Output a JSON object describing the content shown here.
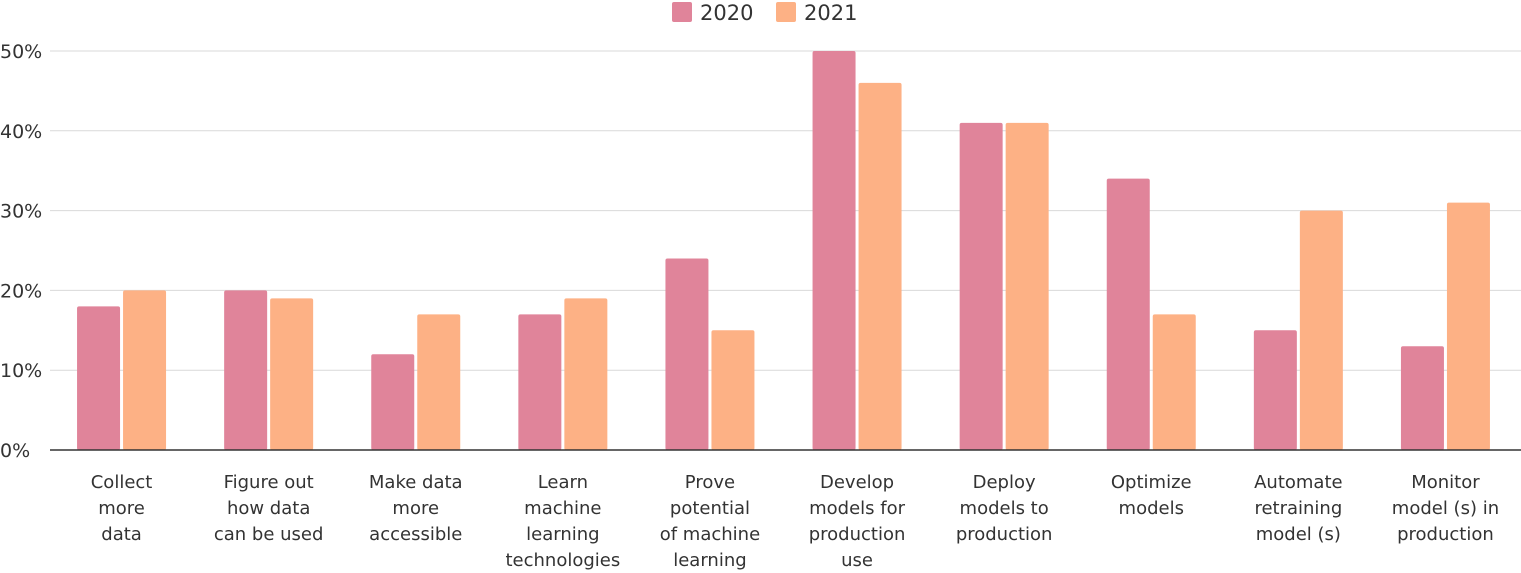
{
  "chart_data": {
    "type": "bar",
    "title": "",
    "xlabel": "",
    "ylabel": "",
    "ylim": [
      0,
      50
    ],
    "yticks": [
      "0%",
      "10%",
      "20%",
      "30%",
      "40%",
      "50%"
    ],
    "ytick_values": [
      0,
      10,
      20,
      30,
      40,
      50
    ],
    "grid": true,
    "legend_position": "top-center",
    "categories": [
      [
        "Collect",
        "more",
        "data"
      ],
      [
        "Figure out",
        "how data",
        "can be used"
      ],
      [
        "Make data",
        "more",
        "accessible"
      ],
      [
        "Learn",
        "machine",
        "learning",
        "technologies"
      ],
      [
        "Prove",
        "potential",
        "of machine",
        "learning"
      ],
      [
        "Develop",
        "models for",
        "production",
        "use"
      ],
      [
        "Deploy",
        "models to",
        "production"
      ],
      [
        "Optimize",
        "models"
      ],
      [
        "Automate",
        "retraining",
        "model (s)"
      ],
      [
        "Monitor",
        "model (s) in",
        "production"
      ]
    ],
    "series": [
      {
        "name": "2020",
        "color": "#e0849a",
        "values": [
          18,
          20,
          12,
          17,
          24,
          50,
          41,
          34,
          15,
          13
        ]
      },
      {
        "name": "2021",
        "color": "#fdb185",
        "values": [
          20,
          19,
          17,
          19,
          15,
          46,
          41,
          17,
          30,
          31
        ]
      }
    ]
  }
}
